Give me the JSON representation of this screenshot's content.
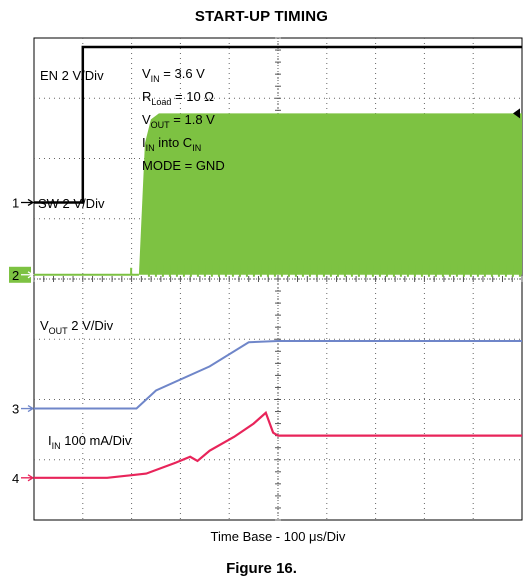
{
  "title": "START-UP TIMING",
  "caption": "Figure 16.",
  "chart_data": {
    "type": "line",
    "title": "START-UP TIMING",
    "xlabel": "Time Base - 100 μs/Div",
    "x_divisions": 10,
    "y_divisions": 8,
    "grid": true,
    "colors": {
      "ch1": "#000000",
      "ch2": "#7dc242",
      "ch3": "#6f86c9",
      "ch4": "#e8245a",
      "marker1": "#000000",
      "marker2": "#ffffff",
      "marker3": "#6f86c9",
      "marker4": "#e8245a",
      "marker2_bg": "#7dc242"
    },
    "conditions": [
      {
        "base": "V",
        "sub": "IN",
        "rest": " = 3.6 V"
      },
      {
        "base": "R",
        "sub": "Load",
        "rest": " = 10 Ω"
      },
      {
        "base": "V",
        "sub": "OUT",
        "rest": " = 1.8 V"
      },
      {
        "base": "I",
        "sub": "IN",
        "rest": " into C",
        "sub2": "IN"
      },
      {
        "base": "MODE = GND",
        "sub": "",
        "rest": ""
      }
    ],
    "series": [
      {
        "channel": "1",
        "name": "EN 2 V/Div",
        "name_base": "EN 2 V/Div",
        "name_sub": "",
        "name_rest": "",
        "ground_div": 2.73,
        "step_time_div": 1.0,
        "high_div": 0.15
      },
      {
        "channel": "2",
        "name": "SW 2 V/Div",
        "name_base": "SW 2 V/Div",
        "name_sub": "",
        "name_rest": "",
        "ground_div": 3.93,
        "switching_start_div": 2.15,
        "switching_top_div": 1.25
      },
      {
        "channel": "3",
        "name": "VOUT 2 V/Div",
        "name_base": "V",
        "name_sub": "OUT",
        "name_rest": " 2 V/Div",
        "ground_div": 6.15,
        "points": [
          [
            0,
            6.15
          ],
          [
            2.1,
            6.15
          ],
          [
            2.5,
            5.85
          ],
          [
            3.6,
            5.45
          ],
          [
            4.4,
            5.05
          ],
          [
            5.0,
            5.03
          ],
          [
            10,
            5.03
          ]
        ]
      },
      {
        "channel": "4",
        "name": "IIN 100 mA/Div",
        "name_base": "I",
        "name_sub": "IN",
        "name_rest": " 100 mA/Div",
        "ground_div": 7.3,
        "points": [
          [
            0,
            7.3
          ],
          [
            1.5,
            7.3
          ],
          [
            2.3,
            7.23
          ],
          [
            2.9,
            7.05
          ],
          [
            3.2,
            6.95
          ],
          [
            3.35,
            7.02
          ],
          [
            3.6,
            6.85
          ],
          [
            4.1,
            6.62
          ],
          [
            4.5,
            6.4
          ],
          [
            4.75,
            6.22
          ],
          [
            4.9,
            6.55
          ],
          [
            5.0,
            6.6
          ],
          [
            6.0,
            6.6
          ],
          [
            10,
            6.6
          ]
        ]
      }
    ]
  }
}
